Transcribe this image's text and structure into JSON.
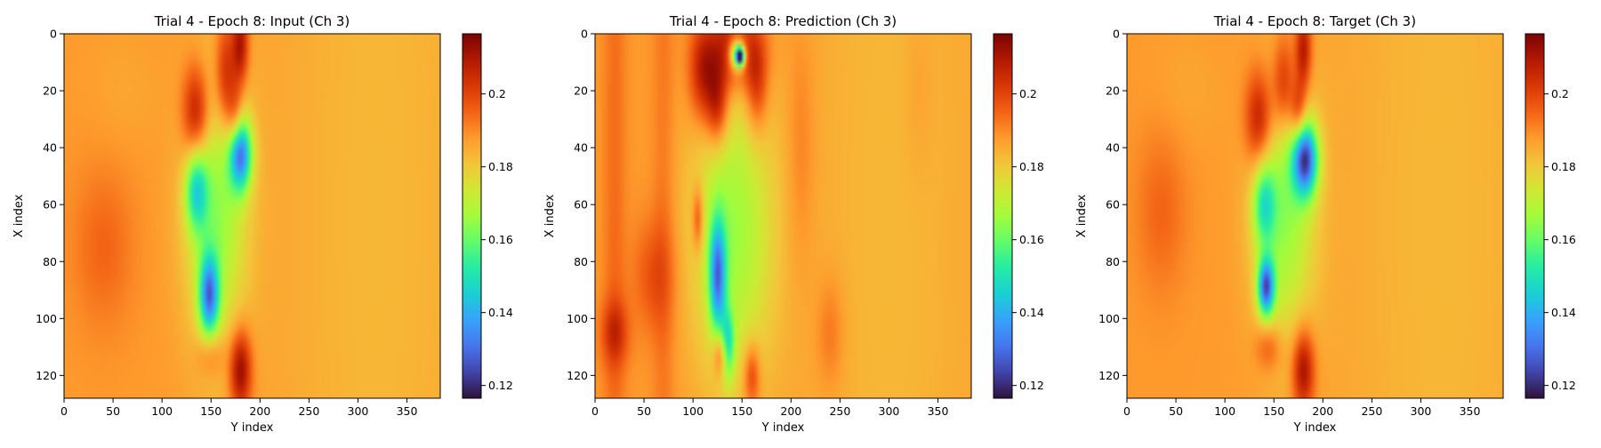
{
  "figure": {
    "background": "#ffffff"
  },
  "colormap": {
    "name": "turbo",
    "stops": [
      "#30123b",
      "#4145ab",
      "#4675ed",
      "#39a2fc",
      "#1bcfd4",
      "#24eca6",
      "#61fc6c",
      "#a4fc3b",
      "#d1e834",
      "#f3c63a",
      "#fe9b2d",
      "#f36315",
      "#d93806",
      "#b11901",
      "#7a0403"
    ]
  },
  "chart_data": [
    {
      "type": "heatmap",
      "title": "Trial 4 - Epoch 8: Input (Ch 3)",
      "xlabel": "Y index",
      "ylabel": "X index",
      "x_range": [
        0,
        384
      ],
      "y_range": [
        0,
        128
      ],
      "y_inverted": true,
      "xticks": [
        0,
        50,
        100,
        150,
        200,
        250,
        300,
        350
      ],
      "yticks": [
        0,
        20,
        40,
        60,
        80,
        100,
        120
      ],
      "colorbar": {
        "min": 0.1165,
        "max": 0.2165,
        "ticks": [
          0.12,
          0.14,
          0.16,
          0.18,
          0.2
        ]
      },
      "background_value": 0.188,
      "features": [
        {
          "kind": "band",
          "x": 235,
          "y": 64,
          "sx": 40,
          "sy": 200,
          "v": 0.188
        },
        {
          "kind": "band",
          "x": 320,
          "y": 64,
          "sx": 80,
          "sy": 200,
          "v": 0.18
        },
        {
          "kind": "blob",
          "x": 135,
          "y": 28,
          "sx": 10,
          "sy": 12,
          "v": 0.214
        },
        {
          "kind": "blob",
          "x": 165,
          "y": 15,
          "sx": 8,
          "sy": 14,
          "v": 0.21
        },
        {
          "kind": "blob",
          "x": 180,
          "y": 4,
          "sx": 6,
          "sy": 10,
          "v": 0.212
        },
        {
          "kind": "blob",
          "x": 175,
          "y": 30,
          "sx": 6,
          "sy": 8,
          "v": 0.205
        },
        {
          "kind": "blob",
          "x": 180,
          "y": 118,
          "sx": 8,
          "sy": 10,
          "v": 0.216
        },
        {
          "kind": "blob",
          "x": 150,
          "y": 112,
          "sx": 10,
          "sy": 6,
          "v": 0.2
        },
        {
          "kind": "blob",
          "x": 40,
          "y": 75,
          "sx": 22,
          "sy": 20,
          "v": 0.195
        },
        {
          "kind": "blob",
          "x": 60,
          "y": 20,
          "sx": 25,
          "sy": 15,
          "v": 0.186
        },
        {
          "kind": "blob",
          "x": 155,
          "y": 62,
          "sx": 22,
          "sy": 35,
          "v": 0.165
        },
        {
          "kind": "blob",
          "x": 180,
          "y": 42,
          "sx": 8,
          "sy": 9,
          "v": 0.138
        },
        {
          "kind": "blob",
          "x": 148,
          "y": 92,
          "sx": 7,
          "sy": 10,
          "v": 0.142
        },
        {
          "kind": "blob",
          "x": 135,
          "y": 55,
          "sx": 8,
          "sy": 10,
          "v": 0.158
        }
      ]
    },
    {
      "type": "heatmap",
      "title": "Trial 4 - Epoch 8: Prediction (Ch 3)",
      "xlabel": "Y index",
      "ylabel": "X index",
      "x_range": [
        0,
        384
      ],
      "y_range": [
        0,
        128
      ],
      "y_inverted": true,
      "xticks": [
        0,
        50,
        100,
        150,
        200,
        250,
        300,
        350
      ],
      "yticks": [
        0,
        20,
        40,
        60,
        80,
        100,
        120
      ],
      "colorbar": {
        "min": 0.1165,
        "max": 0.2165,
        "ticks": [
          0.12,
          0.14,
          0.16,
          0.18,
          0.2
        ]
      },
      "background_value": 0.188,
      "features": [
        {
          "kind": "band",
          "x": 300,
          "y": 64,
          "sx": 70,
          "sy": 200,
          "v": 0.18
        },
        {
          "kind": "band",
          "x": 20,
          "y": 64,
          "sx": 8,
          "sy": 200,
          "v": 0.198
        },
        {
          "kind": "band",
          "x": 70,
          "y": 64,
          "sx": 8,
          "sy": 200,
          "v": 0.196
        },
        {
          "kind": "band",
          "x": 210,
          "y": 40,
          "sx": 10,
          "sy": 30,
          "v": 0.197
        },
        {
          "kind": "band",
          "x": 240,
          "y": 105,
          "sx": 10,
          "sy": 14,
          "v": 0.2
        },
        {
          "kind": "band",
          "x": 330,
          "y": 20,
          "sx": 10,
          "sy": 20,
          "v": 0.192
        },
        {
          "kind": "blob",
          "x": 140,
          "y": 5,
          "sx": 20,
          "sy": 10,
          "v": 0.213
        },
        {
          "kind": "blob",
          "x": 110,
          "y": 15,
          "sx": 10,
          "sy": 12,
          "v": 0.208
        },
        {
          "kind": "blob",
          "x": 125,
          "y": 25,
          "sx": 8,
          "sy": 10,
          "v": 0.21
        },
        {
          "kind": "blob",
          "x": 165,
          "y": 18,
          "sx": 8,
          "sy": 12,
          "v": 0.205
        },
        {
          "kind": "blob",
          "x": 145,
          "y": 7,
          "sx": 6,
          "sy": 4,
          "v": 0.145
        },
        {
          "kind": "blob",
          "x": 148,
          "y": 8,
          "sx": 3,
          "sy": 2,
          "v": 0.125
        },
        {
          "kind": "blob",
          "x": 140,
          "y": 70,
          "sx": 30,
          "sy": 38,
          "v": 0.166
        },
        {
          "kind": "blob",
          "x": 125,
          "y": 85,
          "sx": 6,
          "sy": 14,
          "v": 0.145
        },
        {
          "kind": "blob",
          "x": 135,
          "y": 110,
          "sx": 5,
          "sy": 8,
          "v": 0.15
        },
        {
          "kind": "blob",
          "x": 105,
          "y": 65,
          "sx": 4,
          "sy": 8,
          "v": 0.205
        },
        {
          "kind": "blob",
          "x": 130,
          "y": 112,
          "sx": 6,
          "sy": 6,
          "v": 0.215
        },
        {
          "kind": "blob",
          "x": 160,
          "y": 120,
          "sx": 6,
          "sy": 8,
          "v": 0.205
        },
        {
          "kind": "blob",
          "x": 60,
          "y": 85,
          "sx": 15,
          "sy": 14,
          "v": 0.198
        },
        {
          "kind": "blob",
          "x": 20,
          "y": 105,
          "sx": 10,
          "sy": 8,
          "v": 0.202
        }
      ]
    },
    {
      "type": "heatmap",
      "title": "Trial 4 - Epoch 8: Target (Ch 3)",
      "xlabel": "Y index",
      "ylabel": "X index",
      "x_range": [
        0,
        384
      ],
      "y_range": [
        0,
        128
      ],
      "y_inverted": true,
      "xticks": [
        0,
        50,
        100,
        150,
        200,
        250,
        300,
        350
      ],
      "yticks": [
        0,
        20,
        40,
        60,
        80,
        100,
        120
      ],
      "colorbar": {
        "min": 0.1165,
        "max": 0.2165,
        "ticks": [
          0.12,
          0.14,
          0.16,
          0.18,
          0.2
        ]
      },
      "background_value": 0.188,
      "features": [
        {
          "kind": "band",
          "x": 235,
          "y": 64,
          "sx": 40,
          "sy": 200,
          "v": 0.188
        },
        {
          "kind": "band",
          "x": 320,
          "y": 64,
          "sx": 80,
          "sy": 200,
          "v": 0.18
        },
        {
          "kind": "blob",
          "x": 135,
          "y": 30,
          "sx": 10,
          "sy": 12,
          "v": 0.212
        },
        {
          "kind": "blob",
          "x": 160,
          "y": 18,
          "sx": 8,
          "sy": 12,
          "v": 0.208
        },
        {
          "kind": "blob",
          "x": 180,
          "y": 6,
          "sx": 6,
          "sy": 10,
          "v": 0.212
        },
        {
          "kind": "blob",
          "x": 175,
          "y": 28,
          "sx": 6,
          "sy": 8,
          "v": 0.208
        },
        {
          "kind": "blob",
          "x": 180,
          "y": 118,
          "sx": 8,
          "sy": 10,
          "v": 0.214
        },
        {
          "kind": "blob",
          "x": 145,
          "y": 110,
          "sx": 10,
          "sy": 6,
          "v": 0.2
        },
        {
          "kind": "blob",
          "x": 35,
          "y": 62,
          "sx": 18,
          "sy": 20,
          "v": 0.195
        },
        {
          "kind": "blob",
          "x": 60,
          "y": 20,
          "sx": 25,
          "sy": 15,
          "v": 0.186
        },
        {
          "kind": "blob",
          "x": 160,
          "y": 62,
          "sx": 22,
          "sy": 32,
          "v": 0.165
        },
        {
          "kind": "blob",
          "x": 182,
          "y": 44,
          "sx": 9,
          "sy": 9,
          "v": 0.132
        },
        {
          "kind": "blob",
          "x": 142,
          "y": 89,
          "sx": 6,
          "sy": 7,
          "v": 0.135
        },
        {
          "kind": "blob",
          "x": 140,
          "y": 60,
          "sx": 8,
          "sy": 10,
          "v": 0.162
        }
      ]
    }
  ]
}
